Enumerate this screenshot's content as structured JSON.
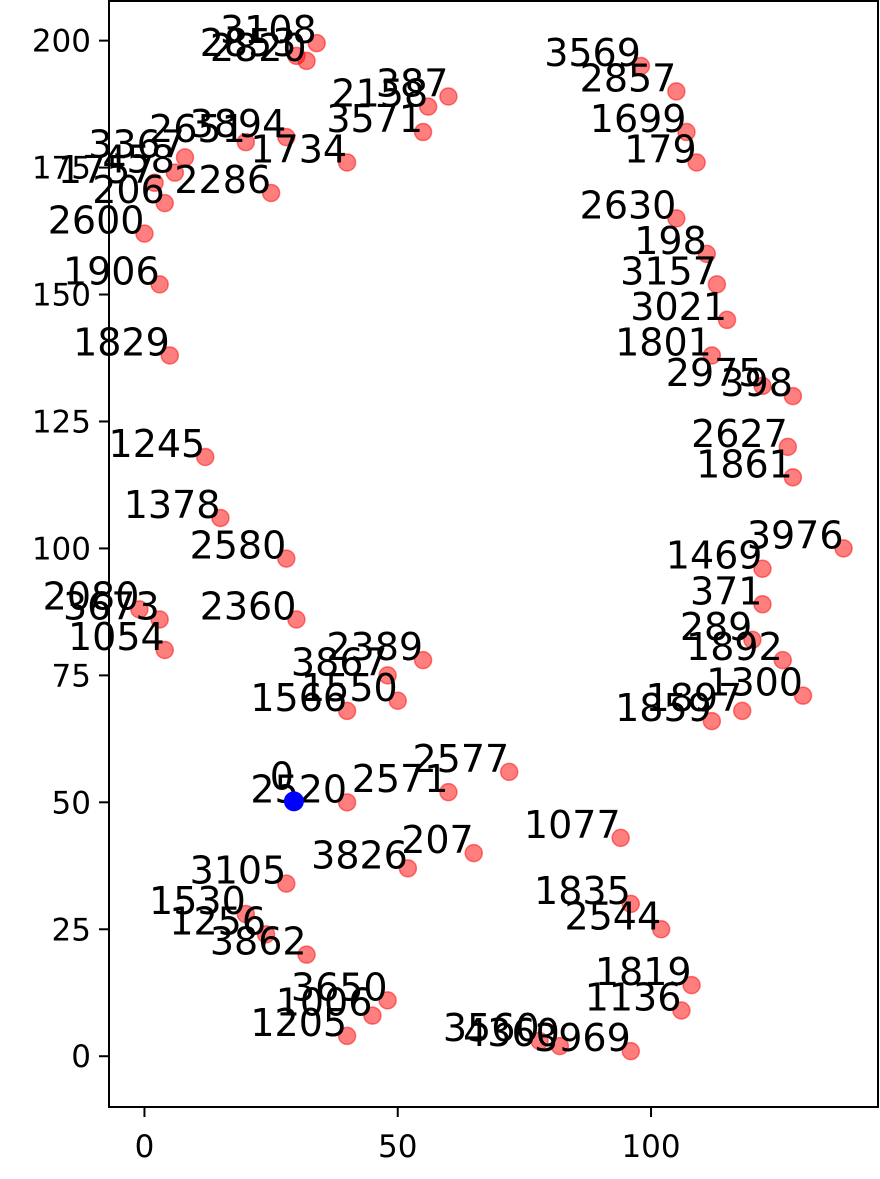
{
  "chart_data": {
    "type": "scatter",
    "xlim": [
      -7,
      145
    ],
    "ylim": [
      -10,
      208
    ],
    "grid": false,
    "x_ticks": [
      0,
      50,
      100
    ],
    "y_ticks": [
      0,
      25,
      50,
      75,
      100,
      125,
      150,
      175,
      200
    ],
    "x_tick_labels": [
      "0",
      "50",
      "100"
    ],
    "y_tick_labels": [
      "0",
      "25",
      "50",
      "75",
      "100",
      "125",
      "150",
      "175",
      "200"
    ],
    "colors": {
      "highlight": "#0000ff",
      "points": "#ff0000",
      "labels": "#000000"
    },
    "highlight_point": {
      "id": "0",
      "x": 29.5,
      "y": 50.2
    },
    "series": [
      {
        "marker": "circle",
        "alpha": 0.5,
        "points": [
          {
            "id": "3108",
            "x": 34,
            "y": 199.5
          },
          {
            "id": "2820",
            "x": 32,
            "y": 196
          },
          {
            "id": "2853",
            "x": 30,
            "y": 197
          },
          {
            "id": "2158",
            "x": 56,
            "y": 187
          },
          {
            "id": "387",
            "x": 60,
            "y": 189
          },
          {
            "id": "3571",
            "x": 55,
            "y": 182
          },
          {
            "id": "3894",
            "x": 28,
            "y": 181
          },
          {
            "id": "3367",
            "x": 8,
            "y": 177
          },
          {
            "id": "458",
            "x": 6,
            "y": 174
          },
          {
            "id": "1757",
            "x": 2,
            "y": 172
          },
          {
            "id": "206",
            "x": 4,
            "y": 168
          },
          {
            "id": "2080",
            "x": -1,
            "y": 88
          },
          {
            "id": "3673",
            "x": 3,
            "y": 86
          },
          {
            "id": "1054",
            "x": 4,
            "y": 80
          },
          {
            "id": "1829",
            "x": 5,
            "y": 138
          },
          {
            "id": "3569",
            "x": 98,
            "y": 195
          },
          {
            "id": "2857",
            "x": 105,
            "y": 190
          },
          {
            "id": "1699",
            "x": 107,
            "y": 182
          },
          {
            "id": "179",
            "x": 109,
            "y": 176
          },
          {
            "id": "2630",
            "x": 105,
            "y": 165
          },
          {
            "id": "198",
            "x": 111,
            "y": 158
          },
          {
            "id": "3157",
            "x": 113,
            "y": 152
          },
          {
            "id": "3021",
            "x": 115,
            "y": 145
          },
          {
            "id": "1801",
            "x": 112,
            "y": 138
          },
          {
            "id": "2975",
            "x": 122,
            "y": 132
          },
          {
            "id": "398",
            "x": 128,
            "y": 130
          },
          {
            "id": "2627",
            "x": 127,
            "y": 120
          },
          {
            "id": "1861",
            "x": 128,
            "y": 114
          },
          {
            "id": "3976",
            "x": 138,
            "y": 100
          },
          {
            "id": "1469",
            "x": 122,
            "y": 96
          },
          {
            "id": "371",
            "x": 122,
            "y": 89
          },
          {
            "id": "289",
            "x": 120,
            "y": 82
          },
          {
            "id": "1892",
            "x": 126,
            "y": 78
          },
          {
            "id": "1300",
            "x": 130,
            "y": 71
          },
          {
            "id": "1897",
            "x": 118,
            "y": 68
          },
          {
            "id": "1859",
            "x": 112,
            "y": 66
          },
          {
            "id": "3867",
            "x": 48,
            "y": 75
          },
          {
            "id": "1566",
            "x": 40,
            "y": 68
          },
          {
            "id": "2577",
            "x": 72,
            "y": 56
          },
          {
            "id": "2571",
            "x": 60,
            "y": 52
          },
          {
            "id": "2520",
            "x": 40,
            "y": 50
          },
          {
            "id": "1077",
            "x": 94,
            "y": 43
          },
          {
            "id": "1835",
            "x": 96,
            "y": 30
          },
          {
            "id": "2544",
            "x": 102,
            "y": 25
          },
          {
            "id": "1819",
            "x": 108,
            "y": 14
          },
          {
            "id": "1136",
            "x": 106,
            "y": 9
          },
          {
            "id": "1006",
            "x": 45,
            "y": 8
          },
          {
            "id": "3650",
            "x": 48,
            "y": 11
          },
          {
            "id": "1205",
            "x": 40,
            "y": 4
          },
          {
            "id": "3560",
            "x": 78,
            "y": 3
          },
          {
            "id": "4360",
            "x": 82,
            "y": 2
          },
          {
            "id": "3969",
            "x": 96,
            "y": 1
          },
          {
            "id": "3862",
            "x": 32,
            "y": 20
          },
          {
            "id": "1256",
            "x": 24,
            "y": 24
          },
          {
            "id": "1530",
            "x": 20,
            "y": 28
          },
          {
            "id": "3105",
            "x": 28,
            "y": 34
          },
          {
            "id": "3826",
            "x": 52,
            "y": 37
          },
          {
            "id": "207",
            "x": 65,
            "y": 40
          },
          {
            "id": "2389",
            "x": 55,
            "y": 78
          },
          {
            "id": "1550",
            "x": 50,
            "y": 70
          },
          {
            "id": "2360",
            "x": 30,
            "y": 86
          },
          {
            "id": "2580",
            "x": 28,
            "y": 98
          },
          {
            "id": "1378",
            "x": 15,
            "y": 106
          },
          {
            "id": "1245",
            "x": 12,
            "y": 118
          },
          {
            "id": "1906",
            "x": 3,
            "y": 152
          },
          {
            "id": "2600",
            "x": 0,
            "y": 162
          },
          {
            "id": "2651",
            "x": 20,
            "y": 180
          },
          {
            "id": "1734",
            "x": 40,
            "y": 176
          },
          {
            "id": "2286",
            "x": 25,
            "y": 170
          }
        ]
      }
    ]
  }
}
